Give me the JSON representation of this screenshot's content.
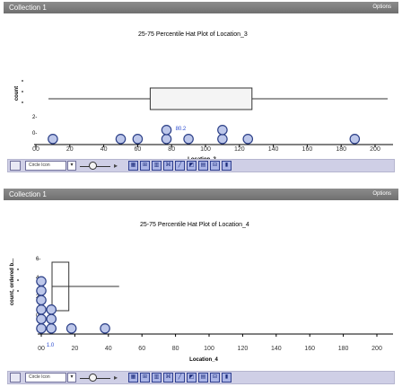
{
  "panels": [
    {
      "collection_label": "Collection 1",
      "options_label": "Options",
      "plot_title": "25-75 Percentile Hat Plot of Location_3",
      "toolbar": {
        "select_label": "Circle Icon"
      },
      "chart_data": {
        "type": "scatter",
        "subtype": "hat-plot-dot-plot",
        "title": "25-75 Percentile Hat Plot of Location_3",
        "xlabel": "Location_3",
        "ylabel": "count",
        "x_ticks": [
          "00",
          "20",
          "40",
          "60",
          "80",
          "100",
          "120",
          "140",
          "160",
          "180",
          "200"
        ],
        "y_ticks": [
          "2-",
          "0-"
        ],
        "xlim": [
          0,
          200
        ],
        "marker_label": "80.2",
        "hat": {
          "q1": 60,
          "q3": 120,
          "whisker_min": 0,
          "whisker_max": 200
        },
        "points": [
          {
            "x": 10,
            "y": 1
          },
          {
            "x": 50,
            "y": 1
          },
          {
            "x": 60,
            "y": 1
          },
          {
            "x": 77,
            "y": 1
          },
          {
            "x": 77,
            "y": 2
          },
          {
            "x": 90,
            "y": 1
          },
          {
            "x": 110,
            "y": 1
          },
          {
            "x": 110,
            "y": 2
          },
          {
            "x": 125,
            "y": 1
          },
          {
            "x": 188,
            "y": 1
          }
        ]
      }
    },
    {
      "collection_label": "Collection 1",
      "options_label": "Options",
      "plot_title": "25-75 Percentile Hat Plot of Location_4",
      "toolbar": {
        "select_label": "Circle Icon"
      },
      "chart_data": {
        "type": "scatter",
        "subtype": "hat-plot-dot-plot",
        "title": "25-75 Percentile Hat Plot of Location_4",
        "xlabel": "Location_4",
        "ylabel": "count, ordered b...",
        "x_ticks": [
          "00",
          "20",
          "40",
          "60",
          "80",
          "100",
          "120",
          "140",
          "160",
          "180",
          "200"
        ],
        "y_ticks": [
          "6-",
          "4-",
          "2-",
          "0-"
        ],
        "xlim": [
          0,
          200
        ],
        "marker_label": "1.0",
        "hat": {
          "q1": 0,
          "q3": 10,
          "whisker_min": 0,
          "whisker_max": 40
        },
        "points": [
          {
            "x": 0,
            "y": 1
          },
          {
            "x": 0,
            "y": 2
          },
          {
            "x": 0,
            "y": 3
          },
          {
            "x": 0,
            "y": 4
          },
          {
            "x": 0,
            "y": 5
          },
          {
            "x": 0,
            "y": 6
          },
          {
            "x": 6,
            "y": 1
          },
          {
            "x": 6,
            "y": 2
          },
          {
            "x": 6,
            "y": 3
          },
          {
            "x": 18,
            "y": 1
          },
          {
            "x": 38,
            "y": 1
          }
        ]
      }
    }
  ]
}
